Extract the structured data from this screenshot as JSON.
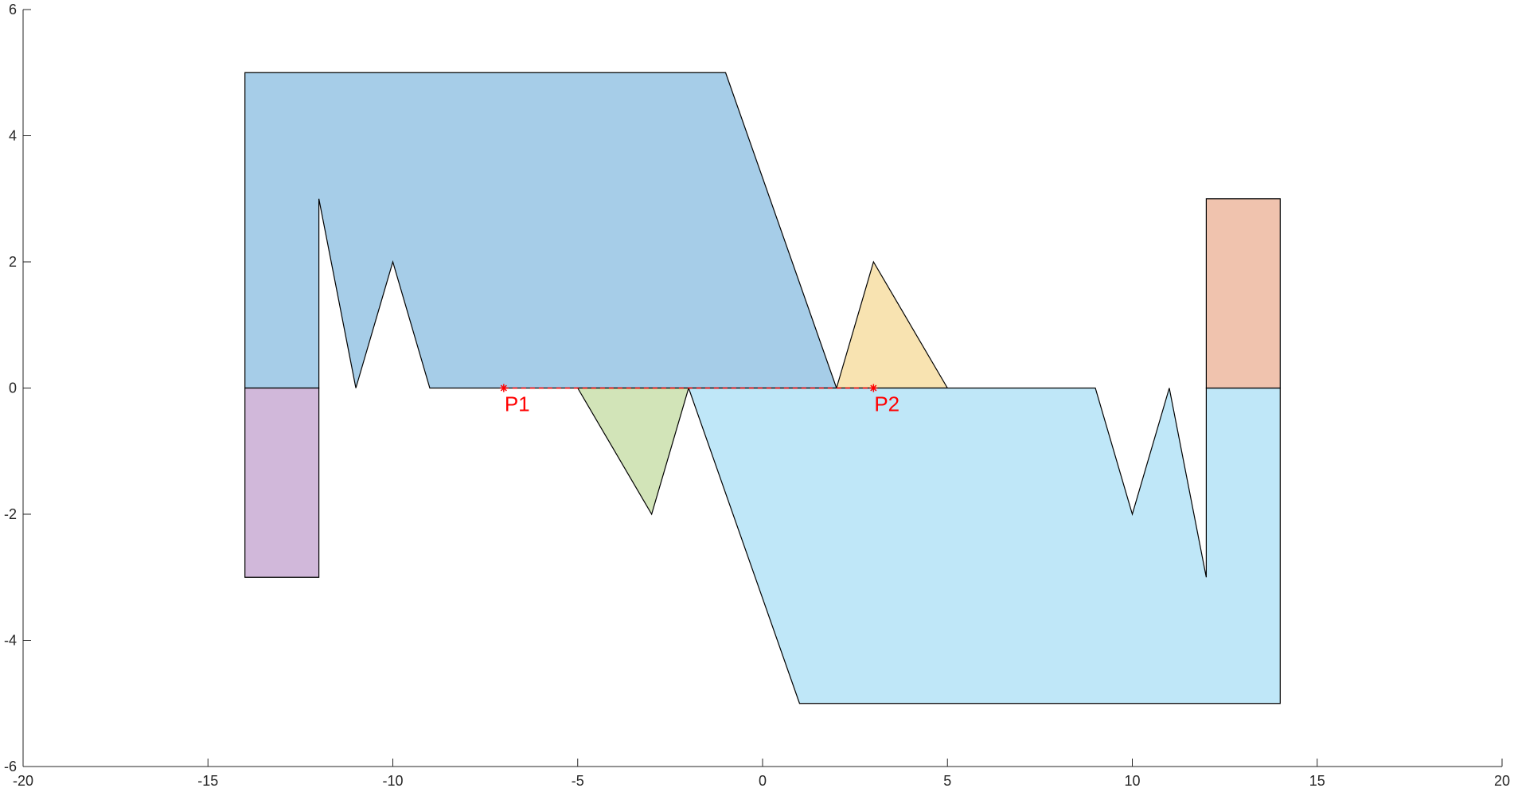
{
  "chart_data": {
    "type": "area",
    "xlim": [
      -20,
      20
    ],
    "ylim": [
      -6,
      6
    ],
    "x_ticks": [
      -20,
      -15,
      -10,
      -5,
      0,
      5,
      10,
      15,
      20
    ],
    "y_ticks": [
      -6,
      -4,
      -2,
      0,
      2,
      4,
      6
    ],
    "x_tick_labels": [
      "-20",
      "-15",
      "-10",
      "-5",
      "0",
      "5",
      "10",
      "15",
      "20"
    ],
    "y_tick_labels": [
      "-6",
      "-4",
      "-2",
      "0",
      "2",
      "4",
      "6"
    ],
    "grid": false,
    "title": "",
    "xlabel": "",
    "ylabel": "",
    "polygons": [
      {
        "color": "#a6cde8",
        "points": [
          [
            -14,
            5
          ],
          [
            -1,
            5
          ],
          [
            2,
            0
          ],
          [
            -9,
            0
          ],
          [
            -10,
            2
          ],
          [
            -11,
            0
          ],
          [
            -12,
            3
          ],
          [
            -12,
            0
          ],
          [
            -14,
            0
          ]
        ]
      },
      {
        "color": "#d1b8da",
        "points": [
          [
            -14,
            0
          ],
          [
            -12,
            0
          ],
          [
            -12,
            -3
          ],
          [
            -14,
            -3
          ]
        ]
      },
      {
        "color": "#d2e4b8",
        "points": [
          [
            -5,
            0
          ],
          [
            -2,
            0
          ],
          [
            -3,
            -2
          ]
        ]
      },
      {
        "color": "#f8e3b1",
        "points": [
          [
            2,
            0
          ],
          [
            3,
            2
          ],
          [
            5,
            0
          ]
        ]
      },
      {
        "color": "#bfe7f8",
        "points": [
          [
            -2,
            0
          ],
          [
            9,
            0
          ],
          [
            10,
            -2
          ],
          [
            11,
            0
          ],
          [
            12,
            -3
          ],
          [
            12,
            0
          ],
          [
            14,
            0
          ],
          [
            14,
            -5
          ],
          [
            1,
            -5
          ]
        ]
      },
      {
        "color": "#f0c3ae",
        "points": [
          [
            12,
            0
          ],
          [
            12,
            3
          ],
          [
            14,
            3
          ],
          [
            14,
            0
          ]
        ]
      }
    ],
    "points": [
      {
        "label": "P1",
        "x": -7,
        "y": 0
      },
      {
        "label": "P2",
        "x": 3,
        "y": 0
      }
    ],
    "connector": {
      "from": "P1",
      "to": "P2",
      "style": "dashed",
      "color": "#ff0000"
    }
  }
}
